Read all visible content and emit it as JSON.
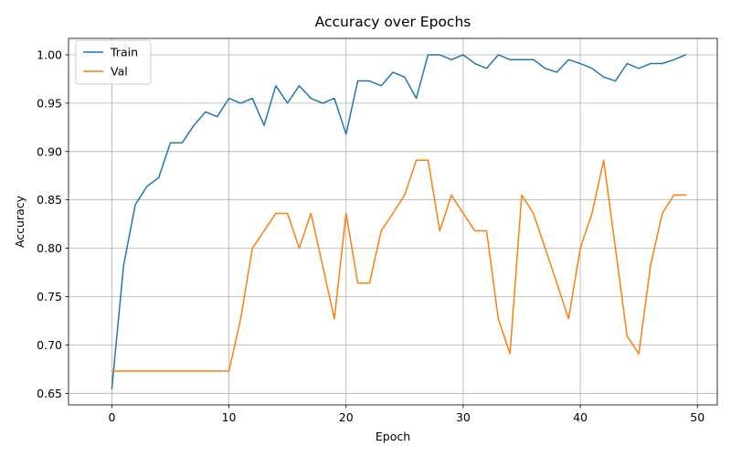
{
  "chart_data": {
    "type": "line",
    "title": "Accuracy over Epochs",
    "xlabel": "Epoch",
    "ylabel": "Accuracy",
    "xlim": [
      -3.7,
      51.7
    ],
    "ylim": [
      0.638,
      1.017
    ],
    "xticks": [
      {
        "value": 0,
        "label": "0"
      },
      {
        "value": 10,
        "label": "10"
      },
      {
        "value": 20,
        "label": "20"
      },
      {
        "value": 30,
        "label": "30"
      },
      {
        "value": 40,
        "label": "40"
      },
      {
        "value": 50,
        "label": "50"
      }
    ],
    "yticks": [
      {
        "value": 0.65,
        "label": "0.65"
      },
      {
        "value": 0.7,
        "label": "0.70"
      },
      {
        "value": 0.75,
        "label": "0.75"
      },
      {
        "value": 0.8,
        "label": "0.80"
      },
      {
        "value": 0.85,
        "label": "0.85"
      },
      {
        "value": 0.9,
        "label": "0.90"
      },
      {
        "value": 0.95,
        "label": "0.95"
      },
      {
        "value": 1.0,
        "label": "1.00"
      }
    ],
    "grid": true,
    "legend_position": "top-left",
    "x": [
      0,
      1,
      2,
      3,
      4,
      5,
      6,
      7,
      8,
      9,
      10,
      11,
      12,
      13,
      14,
      15,
      16,
      17,
      18,
      19,
      20,
      21,
      22,
      23,
      24,
      25,
      26,
      27,
      28,
      29,
      30,
      31,
      32,
      33,
      34,
      35,
      36,
      37,
      38,
      39,
      40,
      41,
      42,
      43,
      44,
      45,
      46,
      47,
      48,
      49
    ],
    "series": [
      {
        "name": "Train",
        "color": "#1f77b4",
        "values": [
          0.655,
          0.782,
          0.845,
          0.864,
          0.873,
          0.909,
          0.909,
          0.927,
          0.941,
          0.936,
          0.955,
          0.95,
          0.955,
          0.927,
          0.968,
          0.95,
          0.968,
          0.955,
          0.95,
          0.955,
          0.918,
          0.973,
          0.973,
          0.968,
          0.982,
          0.977,
          0.955,
          1.0,
          1.0,
          0.995,
          1.0,
          0.991,
          0.986,
          1.0,
          0.995,
          0.995,
          0.995,
          0.986,
          0.982,
          0.995,
          0.991,
          0.986,
          0.977,
          0.973,
          0.991,
          0.986,
          0.991,
          0.991,
          0.995,
          1.0
        ]
      },
      {
        "name": "Val",
        "color": "#ff7f0e",
        "values": [
          0.673,
          0.673,
          0.673,
          0.673,
          0.673,
          0.673,
          0.673,
          0.673,
          0.673,
          0.673,
          0.673,
          0.727,
          0.8,
          0.818,
          0.836,
          0.836,
          0.8,
          0.836,
          0.782,
          0.727,
          0.836,
          0.764,
          0.764,
          0.818,
          0.836,
          0.855,
          0.891,
          0.891,
          0.818,
          0.855,
          0.836,
          0.818,
          0.818,
          0.727,
          0.691,
          0.855,
          0.836,
          0.8,
          0.764,
          0.727,
          0.8,
          0.836,
          0.891,
          0.8,
          0.709,
          0.691,
          0.782,
          0.836,
          0.855,
          0.855
        ]
      }
    ]
  }
}
